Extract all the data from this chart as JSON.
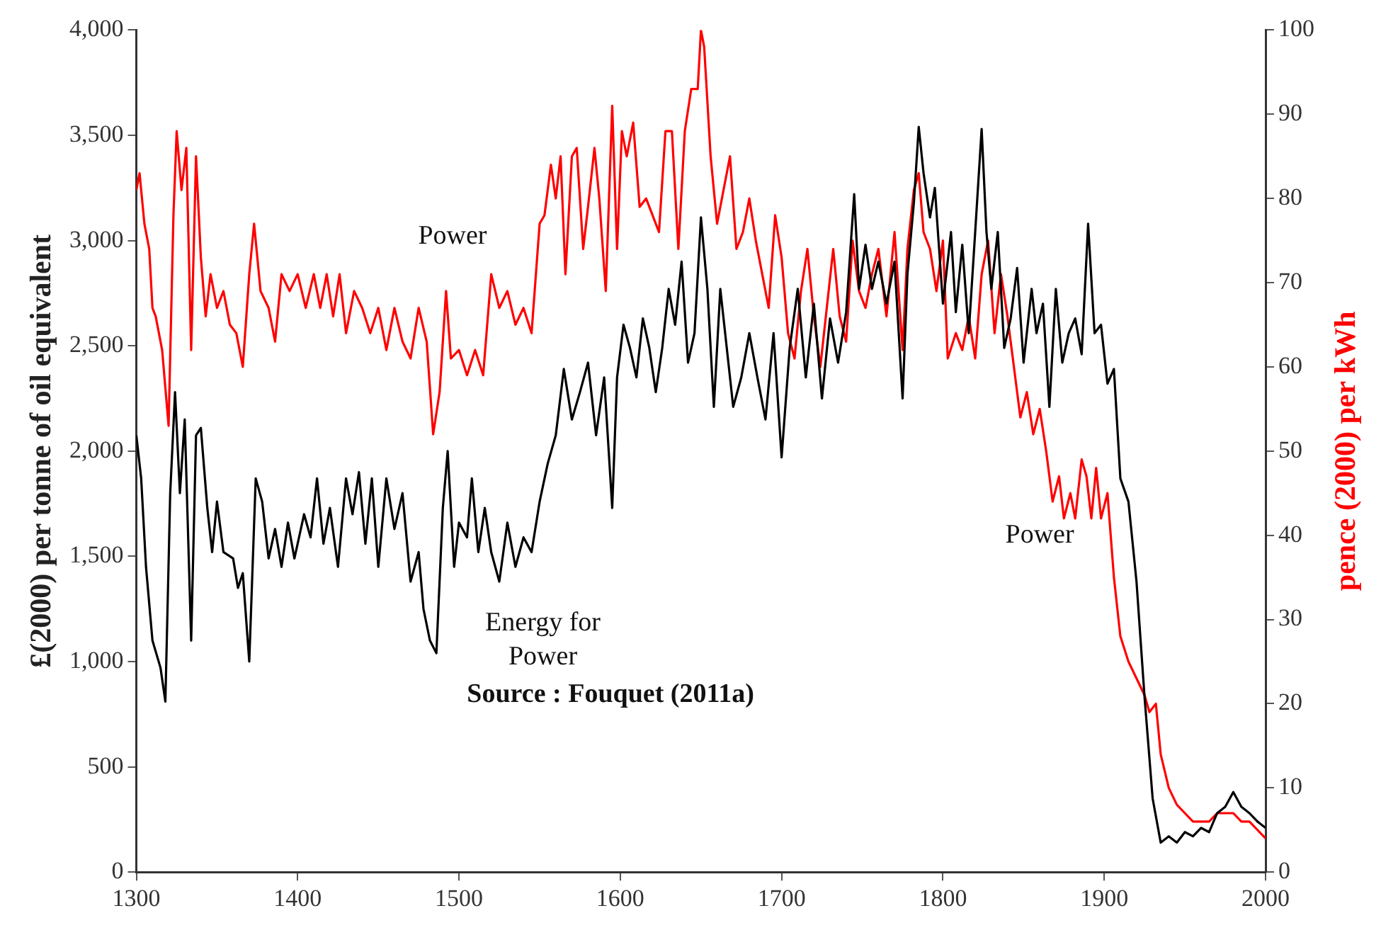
{
  "chart_data": {
    "type": "line",
    "ylabel": "£(2000) per tonne of oil equivalent",
    "y2label": "pence (2000) per kWh",
    "xlim": [
      1300,
      2000
    ],
    "xticks": [
      1300,
      1400,
      1500,
      1600,
      1700,
      1800,
      1900,
      2000
    ],
    "ylim": [
      0,
      4000
    ],
    "yticks": [
      0,
      {
        "value": 500,
        "label": "500"
      },
      {
        "value": 1000,
        "label": "1,000"
      },
      {
        "value": 1500,
        "label": "1,500"
      },
      {
        "value": 2000,
        "label": "2,000"
      },
      {
        "value": 2500,
        "label": "2,500"
      },
      {
        "value": 3000,
        "label": "3,000"
      },
      {
        "value": 3500,
        "label": "3,500"
      },
      {
        "value": 4000,
        "label": "4,000"
      }
    ],
    "y2lim": [
      0,
      100
    ],
    "y2ticks": [
      0,
      10,
      20,
      30,
      40,
      50,
      60,
      70,
      80,
      90,
      100
    ],
    "grid": false,
    "legend": false,
    "marker": "none",
    "line_style": "solid",
    "series": [
      {
        "color": "#000000",
        "x": [
          1300,
          1303,
          1306,
          1310,
          1315,
          1318,
          1321,
          1324,
          1327,
          1330,
          1334,
          1337,
          1340,
          1344,
          1347,
          1350,
          1354,
          1360,
          1363,
          1366,
          1370,
          1374,
          1378,
          1382,
          1386,
          1390,
          1394,
          1398,
          1404,
          1408,
          1412,
          1416,
          1420,
          1425,
          1430,
          1434,
          1438,
          1442,
          1446,
          1450,
          1455,
          1460,
          1465,
          1470,
          1475,
          1478,
          1482,
          1486,
          1490,
          1493,
          1497,
          1500,
          1505,
          1508,
          1512,
          1516,
          1520,
          1525,
          1530,
          1535,
          1540,
          1545,
          1550,
          1555,
          1560,
          1565,
          1570,
          1575,
          1580,
          1585,
          1590,
          1595,
          1598,
          1602,
          1606,
          1610,
          1614,
          1618,
          1622,
          1626,
          1630,
          1634,
          1638,
          1642,
          1646,
          1650,
          1654,
          1658,
          1662,
          1666,
          1670,
          1675,
          1680,
          1685,
          1690,
          1695,
          1700,
          1705,
          1710,
          1715,
          1720,
          1725,
          1730,
          1735,
          1740,
          1745,
          1748,
          1752,
          1756,
          1760,
          1765,
          1770,
          1775,
          1778,
          1782,
          1785,
          1788,
          1792,
          1795,
          1800,
          1805,
          1808,
          1812,
          1816,
          1820,
          1824,
          1827,
          1830,
          1834,
          1838,
          1842,
          1846,
          1850,
          1855,
          1858,
          1862,
          1866,
          1870,
          1874,
          1878,
          1882,
          1886,
          1890,
          1894,
          1898,
          1902,
          1906,
          1910,
          1915,
          1920,
          1925,
          1930,
          1935,
          1940,
          1945,
          1950,
          1955,
          1960,
          1965,
          1970,
          1975,
          1980,
          1985,
          1990,
          1995,
          2000
        ],
        "values": [
          2075,
          1870,
          1450,
          1100,
          970,
          810,
          1800,
          2280,
          1800,
          2150,
          1100,
          2075,
          2110,
          1730,
          1520,
          1760,
          1520,
          1490,
          1350,
          1420,
          1000,
          1870,
          1760,
          1490,
          1630,
          1450,
          1660,
          1490,
          1700,
          1590,
          1870,
          1560,
          1730,
          1450,
          1870,
          1700,
          1900,
          1560,
          1870,
          1450,
          1870,
          1630,
          1800,
          1380,
          1520,
          1250,
          1100,
          1040,
          1730,
          2000,
          1450,
          1660,
          1590,
          1870,
          1520,
          1730,
          1520,
          1380,
          1660,
          1450,
          1590,
          1520,
          1760,
          1940,
          2075,
          2390,
          2150,
          2280,
          2420,
          2075,
          2350,
          1730,
          2350,
          2600,
          2490,
          2350,
          2630,
          2490,
          2280,
          2490,
          2770,
          2600,
          2900,
          2420,
          2560,
          3110,
          2770,
          2210,
          2770,
          2490,
          2210,
          2350,
          2560,
          2350,
          2150,
          2560,
          1970,
          2490,
          2770,
          2350,
          2700,
          2250,
          2630,
          2420,
          2660,
          3220,
          2770,
          2980,
          2770,
          2900,
          2700,
          2900,
          2250,
          2840,
          3180,
          3540,
          3320,
          3110,
          3250,
          2700,
          3040,
          2660,
          2980,
          2560,
          3040,
          3530,
          3040,
          2770,
          3040,
          2490,
          2630,
          2870,
          2420,
          2770,
          2560,
          2700,
          2210,
          2770,
          2420,
          2560,
          2630,
          2460,
          3080,
          2560,
          2600,
          2320,
          2390,
          1870,
          1760,
          1380,
          830,
          350,
          140,
          170,
          140,
          190,
          170,
          210,
          190,
          280,
          310,
          380,
          310,
          280,
          240,
          210
        ]
      },
      {
        "color": "#ff0000",
        "axis": "y2",
        "x": [
          1300,
          1302,
          1305,
          1308,
          1310,
          1312,
          1316,
          1320,
          1323,
          1325,
          1328,
          1331,
          1334,
          1337,
          1340,
          1343,
          1346,
          1350,
          1354,
          1358,
          1362,
          1366,
          1370,
          1373,
          1377,
          1382,
          1386,
          1390,
          1395,
          1400,
          1405,
          1410,
          1414,
          1418,
          1422,
          1426,
          1430,
          1435,
          1440,
          1445,
          1450,
          1455,
          1460,
          1465,
          1470,
          1475,
          1480,
          1484,
          1488,
          1492,
          1495,
          1500,
          1505,
          1510,
          1515,
          1520,
          1525,
          1530,
          1535,
          1540,
          1545,
          1550,
          1553,
          1557,
          1560,
          1563,
          1566,
          1570,
          1573,
          1577,
          1580,
          1584,
          1587,
          1591,
          1595,
          1598,
          1601,
          1604,
          1608,
          1612,
          1616,
          1620,
          1624,
          1628,
          1632,
          1636,
          1640,
          1644,
          1648,
          1650,
          1652,
          1656,
          1660,
          1664,
          1668,
          1672,
          1676,
          1680,
          1684,
          1688,
          1692,
          1696,
          1700,
          1704,
          1708,
          1712,
          1716,
          1720,
          1724,
          1728,
          1732,
          1736,
          1740,
          1744,
          1748,
          1752,
          1756,
          1760,
          1765,
          1770,
          1775,
          1778,
          1782,
          1785,
          1788,
          1792,
          1796,
          1800,
          1803,
          1808,
          1812,
          1816,
          1820,
          1824,
          1828,
          1832,
          1836,
          1840,
          1844,
          1848,
          1852,
          1856,
          1860,
          1864,
          1868,
          1872,
          1875,
          1879,
          1882,
          1886,
          1889,
          1892,
          1895,
          1898,
          1902,
          1906,
          1910,
          1915,
          1920,
          1925,
          1928,
          1932,
          1935,
          1940,
          1945,
          1950,
          1955,
          1960,
          1965,
          1970,
          1975,
          1980,
          1985,
          1990,
          1995,
          2000
        ],
        "values": [
          81,
          83,
          77,
          74,
          67,
          66,
          62,
          53,
          78,
          88,
          81,
          86,
          62,
          85,
          73,
          66,
          71,
          67,
          69,
          65,
          64,
          60,
          71,
          77,
          69,
          67,
          63,
          71,
          69,
          71,
          67,
          71,
          67,
          71,
          66,
          71,
          64,
          69,
          67,
          64,
          67,
          62,
          67,
          63,
          61,
          67,
          63,
          52,
          57,
          69,
          61,
          62,
          59,
          62,
          59,
          71,
          67,
          69,
          65,
          67,
          64,
          77,
          78,
          84,
          80,
          85,
          71,
          85,
          86,
          74,
          79,
          86,
          80,
          69,
          91,
          74,
          88,
          85,
          89,
          79,
          80,
          78,
          76,
          88,
          88,
          74,
          88,
          93,
          93,
          100,
          98,
          85,
          77,
          81,
          85,
          74,
          76,
          80,
          75,
          71,
          67,
          78,
          73,
          64,
          61,
          69,
          74,
          66,
          60,
          67,
          74,
          66,
          63,
          75,
          69,
          67,
          71,
          74,
          66,
          76,
          62,
          74,
          81,
          83,
          76,
          74,
          69,
          75,
          61,
          64,
          62,
          66,
          61,
          71,
          75,
          64,
          71,
          66,
          60,
          54,
          57,
          52,
          55,
          50,
          44,
          47,
          42,
          45,
          42,
          49,
          47,
          42,
          48,
          42,
          45,
          35,
          28,
          25,
          23,
          21,
          19,
          20,
          14,
          10,
          8,
          7,
          6,
          6,
          6,
          7,
          7,
          7,
          6,
          6,
          5,
          4
        ]
      }
    ],
    "annotations": [
      "Power",
      "Energy for Power",
      "Power",
      "Source : Fouquet (2011a)"
    ]
  }
}
